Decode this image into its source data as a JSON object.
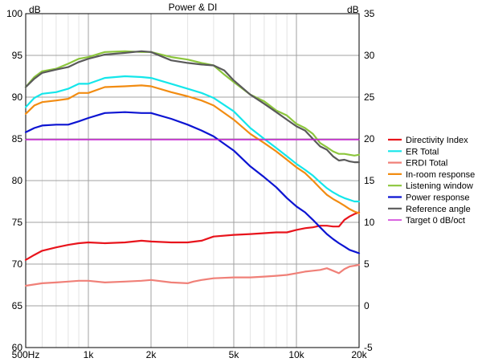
{
  "chart_data": {
    "type": "line",
    "title": "Power & DI",
    "y_left_unit": "dB",
    "y_right_unit": "dB",
    "x_scale": "log",
    "xlim": [
      500,
      20000
    ],
    "ylim_left": [
      60,
      100
    ],
    "ylim_right": [
      -5,
      35
    ],
    "x_ticks": [
      {
        "value": 500,
        "label": "500Hz"
      },
      {
        "value": 1000,
        "label": "1k"
      },
      {
        "value": 2000,
        "label": "2k"
      },
      {
        "value": 5000,
        "label": "5k"
      },
      {
        "value": 10000,
        "label": "10k"
      },
      {
        "value": 20000,
        "label": "20k"
      }
    ],
    "y_left_ticks": [
      {
        "value": 100,
        "label": "100"
      },
      {
        "value": 95,
        "label": "95"
      },
      {
        "value": 90,
        "label": "90"
      },
      {
        "value": 85,
        "label": "85"
      },
      {
        "value": 80,
        "label": "80"
      },
      {
        "value": 75,
        "label": "75"
      },
      {
        "value": 70,
        "label": "70"
      },
      {
        "value": 65,
        "label": "65"
      },
      {
        "value": 60,
        "label": "60"
      }
    ],
    "y_right_ticks": [
      {
        "value": 35,
        "label": "35"
      },
      {
        "value": 30,
        "label": "30"
      },
      {
        "value": 25,
        "label": "25"
      },
      {
        "value": 20,
        "label": "20"
      },
      {
        "value": 15,
        "label": "15"
      },
      {
        "value": 10,
        "label": "10"
      },
      {
        "value": 5,
        "label": "5"
      },
      {
        "value": 0,
        "label": "0"
      },
      {
        "value": -5,
        "label": "-5"
      }
    ],
    "grid": true,
    "legend_position": "right",
    "series": [
      {
        "name": "Directivity Index",
        "color": "#e8141c",
        "axis": "right",
        "x": [
          500,
          550,
          600,
          700,
          800,
          900,
          1000,
          1200,
          1500,
          1800,
          2000,
          2500,
          3000,
          3500,
          4000,
          5000,
          6000,
          7000,
          8000,
          9000,
          10000,
          11000,
          12000,
          13000,
          14000,
          15000,
          16000,
          17000,
          18000,
          19000,
          20000
        ],
        "y": [
          5.5,
          6.1,
          6.6,
          7.0,
          7.3,
          7.5,
          7.6,
          7.5,
          7.6,
          7.8,
          7.7,
          7.6,
          7.6,
          7.8,
          8.3,
          8.5,
          8.6,
          8.7,
          8.8,
          8.8,
          9.1,
          9.3,
          9.4,
          9.6,
          9.6,
          9.5,
          9.5,
          10.3,
          10.7,
          11.0,
          11.2
        ]
      },
      {
        "name": "ER Total",
        "color": "#14e6ea",
        "axis": "left",
        "x": [
          500,
          550,
          600,
          700,
          800,
          900,
          1000,
          1200,
          1500,
          1800,
          2000,
          2500,
          3000,
          3500,
          4000,
          5000,
          6000,
          7000,
          8000,
          9000,
          10000,
          11000,
          12000,
          13000,
          14000,
          15000,
          16000,
          17000,
          18000,
          19000,
          20000
        ],
        "y": [
          88.8,
          89.9,
          90.4,
          90.6,
          91.0,
          91.6,
          91.6,
          92.3,
          92.5,
          92.4,
          92.3,
          91.6,
          91.0,
          90.5,
          89.9,
          88.3,
          86.3,
          85.0,
          83.9,
          82.9,
          82.0,
          81.3,
          80.6,
          79.8,
          79.1,
          78.6,
          78.2,
          77.9,
          77.7,
          77.5,
          77.5
        ]
      },
      {
        "name": "ERDI Total",
        "color": "#f08078",
        "axis": "right",
        "x": [
          500,
          600,
          700,
          800,
          900,
          1000,
          1200,
          1500,
          1800,
          2000,
          2500,
          3000,
          3200,
          3500,
          4000,
          5000,
          6000,
          7000,
          8000,
          9000,
          10000,
          11000,
          12000,
          13000,
          14000,
          15000,
          16000,
          17000,
          18000,
          19000,
          20000
        ],
        "y": [
          2.4,
          2.7,
          2.8,
          2.9,
          3.0,
          3.0,
          2.8,
          2.9,
          3.0,
          3.1,
          2.8,
          2.7,
          2.9,
          3.1,
          3.3,
          3.4,
          3.4,
          3.5,
          3.6,
          3.7,
          3.9,
          4.1,
          4.2,
          4.3,
          4.5,
          4.2,
          3.9,
          4.4,
          4.7,
          4.8,
          4.9
        ]
      },
      {
        "name": "In-room response",
        "color": "#f28c12",
        "axis": "left",
        "x": [
          500,
          550,
          600,
          700,
          800,
          900,
          1000,
          1200,
          1500,
          1800,
          2000,
          2500,
          3000,
          3500,
          4000,
          5000,
          6000,
          7000,
          8000,
          9000,
          10000,
          11000,
          12000,
          13000,
          14000,
          15000,
          16000,
          17000,
          18000,
          19000,
          20000
        ],
        "y": [
          88.0,
          89.0,
          89.4,
          89.6,
          89.8,
          90.5,
          90.5,
          91.2,
          91.3,
          91.4,
          91.3,
          90.6,
          90.1,
          89.6,
          89.0,
          87.3,
          85.6,
          84.5,
          83.5,
          82.5,
          81.6,
          80.9,
          80.0,
          79.1,
          78.3,
          77.8,
          77.4,
          77.0,
          76.6,
          76.3,
          76.1
        ]
      },
      {
        "name": "Listening window",
        "color": "#8cc63c",
        "axis": "left",
        "x": [
          500,
          550,
          600,
          700,
          800,
          900,
          1000,
          1200,
          1500,
          1800,
          2000,
          2500,
          3000,
          3500,
          4000,
          4500,
          5000,
          6000,
          7000,
          8000,
          9000,
          10000,
          11000,
          12000,
          13000,
          14000,
          15000,
          16000,
          17000,
          18000,
          19000,
          20000
        ],
        "y": [
          91.2,
          92.4,
          93.1,
          93.4,
          94.0,
          94.6,
          94.8,
          95.4,
          95.5,
          95.4,
          95.4,
          94.8,
          94.5,
          94.1,
          93.8,
          92.7,
          91.8,
          90.3,
          89.5,
          88.4,
          87.8,
          86.8,
          86.3,
          85.6,
          84.5,
          84.0,
          83.5,
          83.2,
          83.2,
          83.1,
          83.0,
          83.1
        ]
      },
      {
        "name": "Power response",
        "color": "#0c14d2",
        "axis": "left",
        "x": [
          500,
          550,
          600,
          700,
          800,
          900,
          1000,
          1200,
          1500,
          1800,
          2000,
          2500,
          3000,
          3500,
          4000,
          5000,
          6000,
          7000,
          8000,
          9000,
          10000,
          11000,
          12000,
          13000,
          14000,
          15000,
          16000,
          17000,
          18000,
          19000,
          20000
        ],
        "y": [
          85.8,
          86.3,
          86.6,
          86.7,
          86.7,
          87.1,
          87.5,
          88.1,
          88.2,
          88.1,
          88.1,
          87.4,
          86.7,
          86.0,
          85.3,
          83.6,
          81.7,
          80.4,
          79.2,
          77.9,
          76.9,
          76.2,
          75.3,
          74.4,
          73.6,
          73.0,
          72.5,
          72.1,
          71.7,
          71.5,
          71.3
        ]
      },
      {
        "name": "Reference angle",
        "color": "#5a5a5a",
        "axis": "left",
        "x": [
          500,
          550,
          600,
          700,
          800,
          900,
          1000,
          1200,
          1500,
          1800,
          2000,
          2500,
          3000,
          3500,
          4000,
          4500,
          5000,
          6000,
          7000,
          8000,
          9000,
          10000,
          11000,
          12000,
          13000,
          14000,
          15000,
          16000,
          17000,
          18000,
          19000,
          20000
        ],
        "y": [
          91.2,
          92.2,
          92.9,
          93.3,
          93.6,
          94.2,
          94.6,
          95.1,
          95.3,
          95.5,
          95.4,
          94.4,
          94.1,
          93.9,
          93.8,
          93.2,
          92.0,
          90.3,
          89.2,
          88.2,
          87.3,
          86.5,
          86.0,
          85.0,
          84.1,
          83.7,
          82.9,
          82.4,
          82.5,
          82.3,
          82.2,
          82.2
        ]
      },
      {
        "name": "Target 0 dB/oct",
        "color": "#c81ed2",
        "axis": "left",
        "x": [
          500,
          20000
        ],
        "y": [
          84.9,
          84.9
        ]
      }
    ]
  }
}
